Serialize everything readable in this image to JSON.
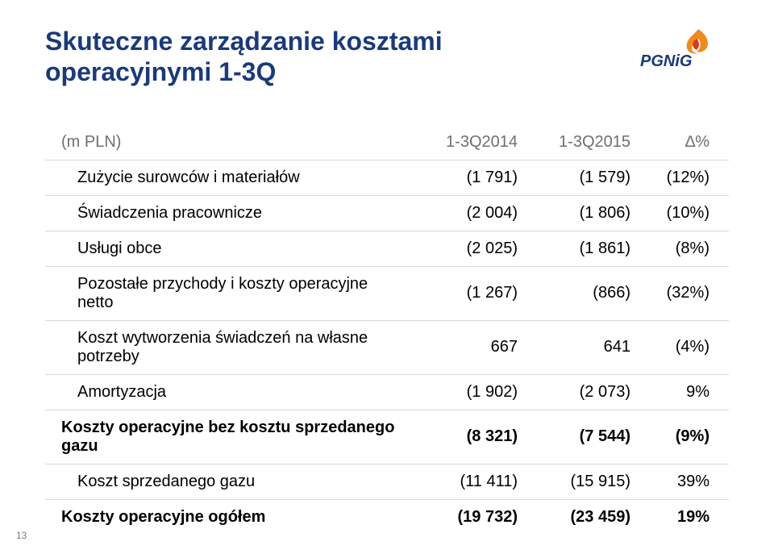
{
  "title_color": "#1a3a7a",
  "title_line1": "Skuteczne zarządzanie kosztami",
  "title_line2": "operacyjnymi 1-3Q",
  "logo": {
    "brand_text": "PGNiG",
    "text_color": "#1a3a7a",
    "flame_orange": "#f08a1d",
    "flame_red": "#d83a1a"
  },
  "header": {
    "row_label": "(m PLN)",
    "col1": "1-3Q2014",
    "col2": "1-3Q2015",
    "col3": "∆%"
  },
  "rows": [
    {
      "label": "Zużycie surowców i materiałów",
      "c1": "(1 791)",
      "c2": "(1 579)",
      "d": "(12%)",
      "indent": true,
      "bold": false,
      "line": true
    },
    {
      "label": "Świadczenia pracownicze",
      "c1": "(2 004)",
      "c2": "(1 806)",
      "d": "(10%)",
      "indent": true,
      "bold": false,
      "line": true
    },
    {
      "label": "Usługi obce",
      "c1": "(2 025)",
      "c2": "(1 861)",
      "d": "(8%)",
      "indent": true,
      "bold": false,
      "line": true
    },
    {
      "label": "Pozostałe przychody i koszty operacyjne netto",
      "c1": "(1 267)",
      "c2": "(866)",
      "d": "(32%)",
      "indent": true,
      "bold": false,
      "line": true
    },
    {
      "label": "Koszt wytworzenia świadczeń na własne potrzeby",
      "c1": "667",
      "c2": "641",
      "d": "(4%)",
      "indent": true,
      "bold": false,
      "line": true
    },
    {
      "label": "Amortyzacja",
      "c1": "(1 902)",
      "c2": "(2 073)",
      "d": "9%",
      "indent": true,
      "bold": false,
      "line": true
    },
    {
      "label": "Koszty operacyjne bez kosztu sprzedanego gazu",
      "c1": "(8 321)",
      "c2": "(7 544)",
      "d": "(9%)",
      "indent": false,
      "bold": true,
      "line": true
    },
    {
      "label": "Koszt sprzedanego gazu",
      "c1": "(11 411)",
      "c2": "(15 915)",
      "d": "39%",
      "indent": true,
      "bold": false,
      "line": true
    },
    {
      "label": "Koszty operacyjne ogółem",
      "c1": "(19 732)",
      "c2": "(23 459)",
      "d": "19%",
      "indent": false,
      "bold": true,
      "line": false
    }
  ],
  "page_number": "13"
}
